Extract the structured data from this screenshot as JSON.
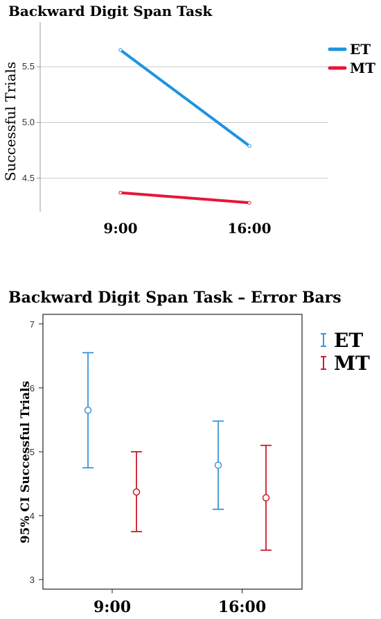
{
  "chart_data": [
    {
      "type": "line",
      "title": "Backward Digit Span Task",
      "xlabel": "",
      "ylabel": "Successful Trials",
      "categories": [
        "9:00",
        "16:00"
      ],
      "ylim": [
        4.2,
        5.9
      ],
      "yticks": [
        "4.5",
        "5.0",
        "5.5"
      ],
      "grid": true,
      "legend_position": "top-right",
      "series": [
        {
          "name": "ET",
          "color": "#1f93e0",
          "values": [
            5.65,
            4.79
          ]
        },
        {
          "name": "MT",
          "color": "#e8153a",
          "values": [
            4.37,
            4.28
          ]
        }
      ]
    },
    {
      "type": "errorbar",
      "title": "Backward Digit Span Task – Error Bars",
      "xlabel": "",
      "ylabel": "95% CI Successful Trials",
      "categories": [
        "9:00",
        "16:00"
      ],
      "ylim": [
        2.85,
        7.15
      ],
      "yticks": [
        "3",
        "4",
        "5",
        "6",
        "7"
      ],
      "grid": false,
      "legend_position": "top-right",
      "series": [
        {
          "name": "ET",
          "color": "#3a96d8",
          "means": [
            5.65,
            4.79
          ],
          "lower": [
            4.75,
            4.1
          ],
          "upper": [
            6.55,
            5.48
          ]
        },
        {
          "name": "MT",
          "color": "#c81e2c",
          "means": [
            4.37,
            4.28
          ],
          "lower": [
            3.75,
            3.46
          ],
          "upper": [
            5.0,
            5.1
          ]
        }
      ]
    }
  ]
}
